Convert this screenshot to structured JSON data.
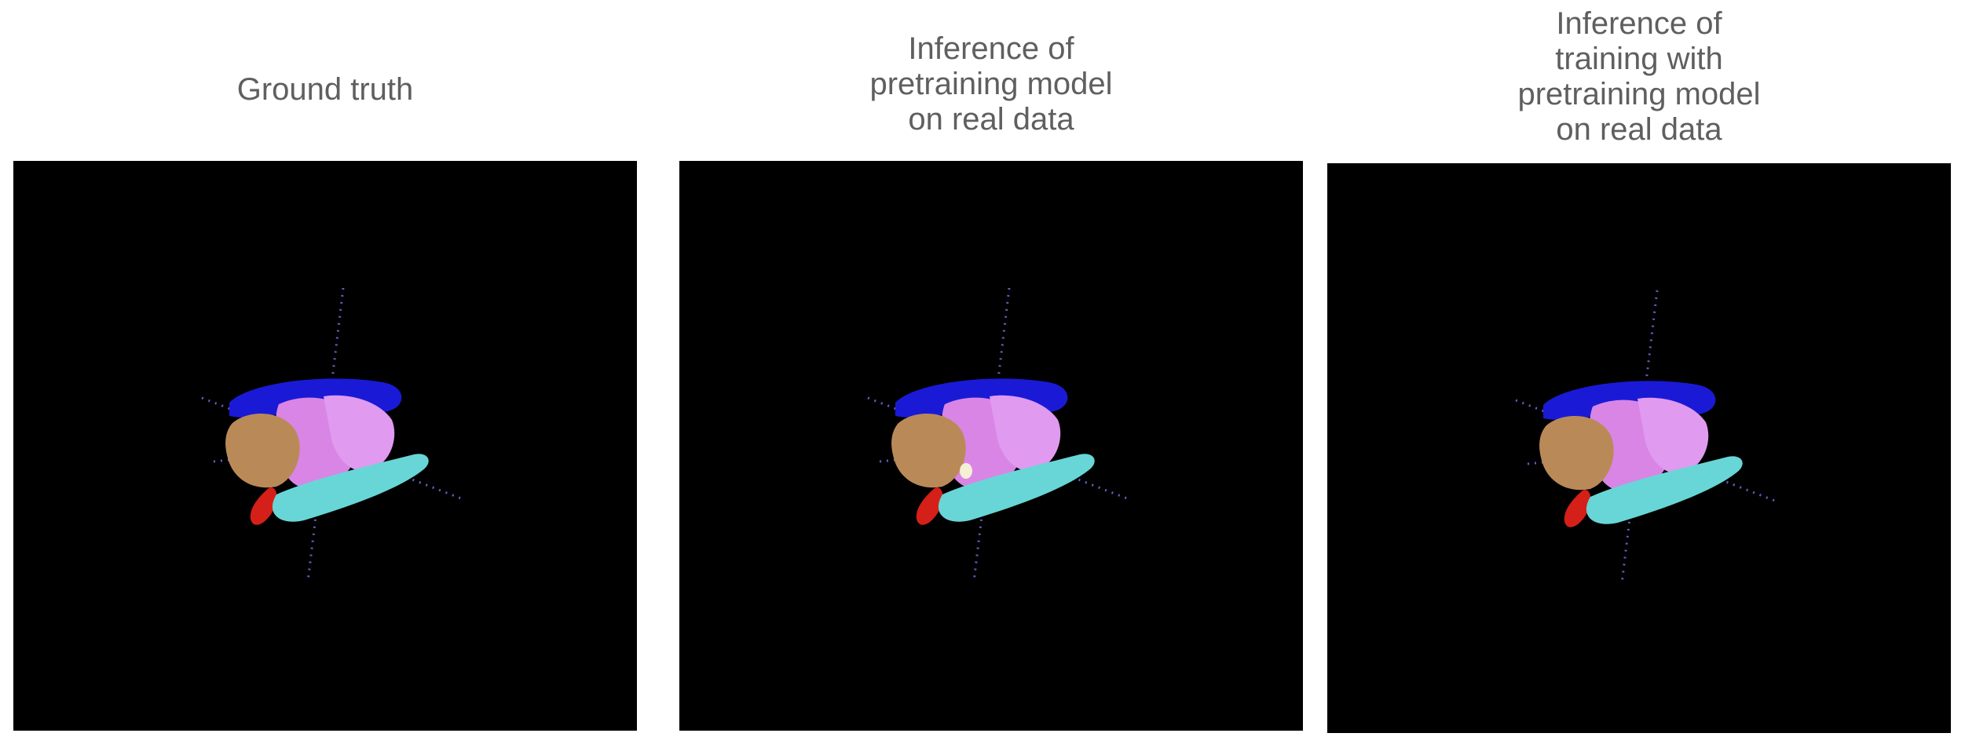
{
  "panels": [
    {
      "id": "ground-truth",
      "title_lines": [
        "Ground truth"
      ]
    },
    {
      "id": "inference-pretraining",
      "title_lines": [
        "Inference of",
        "pretraining model",
        "on real data"
      ]
    },
    {
      "id": "inference-training-with-pretraining",
      "title_lines": [
        "Inference of",
        "training with",
        "pretraining model",
        "on real data"
      ]
    }
  ],
  "structure_colors": {
    "blue_structure": "#1a1ad6",
    "pink_structure": "#d985e6",
    "tan_structure": "#b98a58",
    "cyan_structure": "#68d6d6",
    "red_structure": "#d42018",
    "axis": "#6b6bd6",
    "background": "#000000"
  }
}
